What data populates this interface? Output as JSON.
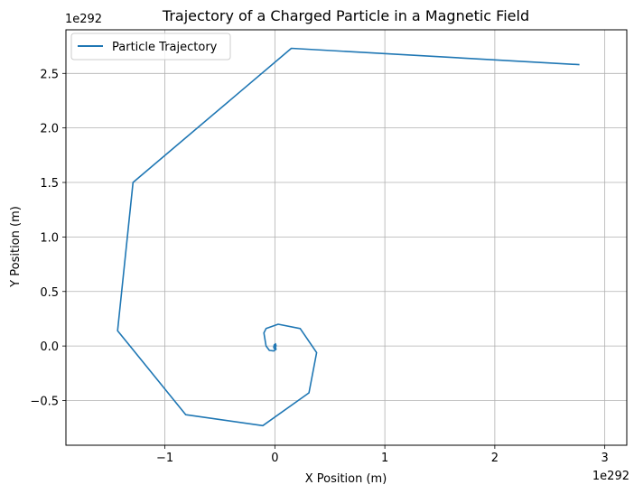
{
  "chart_data": {
    "type": "line",
    "title": "Trajectory of a Charged Particle in a Magnetic Field",
    "xlabel": "X Position (m)",
    "ylabel": "Y Position (m)",
    "x_offset_label": "1e292",
    "y_offset_label": "1e292",
    "xlim": [
      -1.9,
      3.2
    ],
    "ylim": [
      -0.91,
      2.9
    ],
    "xticks": [
      -1,
      0,
      1,
      2,
      3
    ],
    "xtick_labels": [
      "−1",
      "0",
      "1",
      "2",
      "3"
    ],
    "yticks": [
      -0.5,
      0.0,
      0.5,
      1.0,
      1.5,
      2.0,
      2.5
    ],
    "ytick_labels": [
      "−0.5",
      "0.0",
      "0.5",
      "1.0",
      "1.5",
      "2.0",
      "2.5"
    ],
    "grid": true,
    "legend_position": "upper-left",
    "series": [
      {
        "name": "Particle Trajectory",
        "color": "#1f77b4",
        "x": [
          0.0,
          0.005,
          0.01,
          0.005,
          -0.005,
          -0.01,
          -0.005,
          0.0,
          0.01,
          -0.01,
          -0.05,
          -0.08,
          -0.1,
          -0.08,
          0.03,
          0.23,
          0.38,
          0.31,
          -0.11,
          -0.81,
          -1.43,
          -1.29,
          0.15,
          2.77
        ],
        "y": [
          0.0,
          0.02,
          0.005,
          -0.02,
          -0.025,
          -0.01,
          0.01,
          0.015,
          -0.03,
          -0.045,
          -0.04,
          0.0,
          0.12,
          0.16,
          0.2,
          0.16,
          -0.06,
          -0.43,
          -0.73,
          -0.63,
          0.14,
          1.5,
          2.73,
          2.58
        ]
      }
    ]
  }
}
